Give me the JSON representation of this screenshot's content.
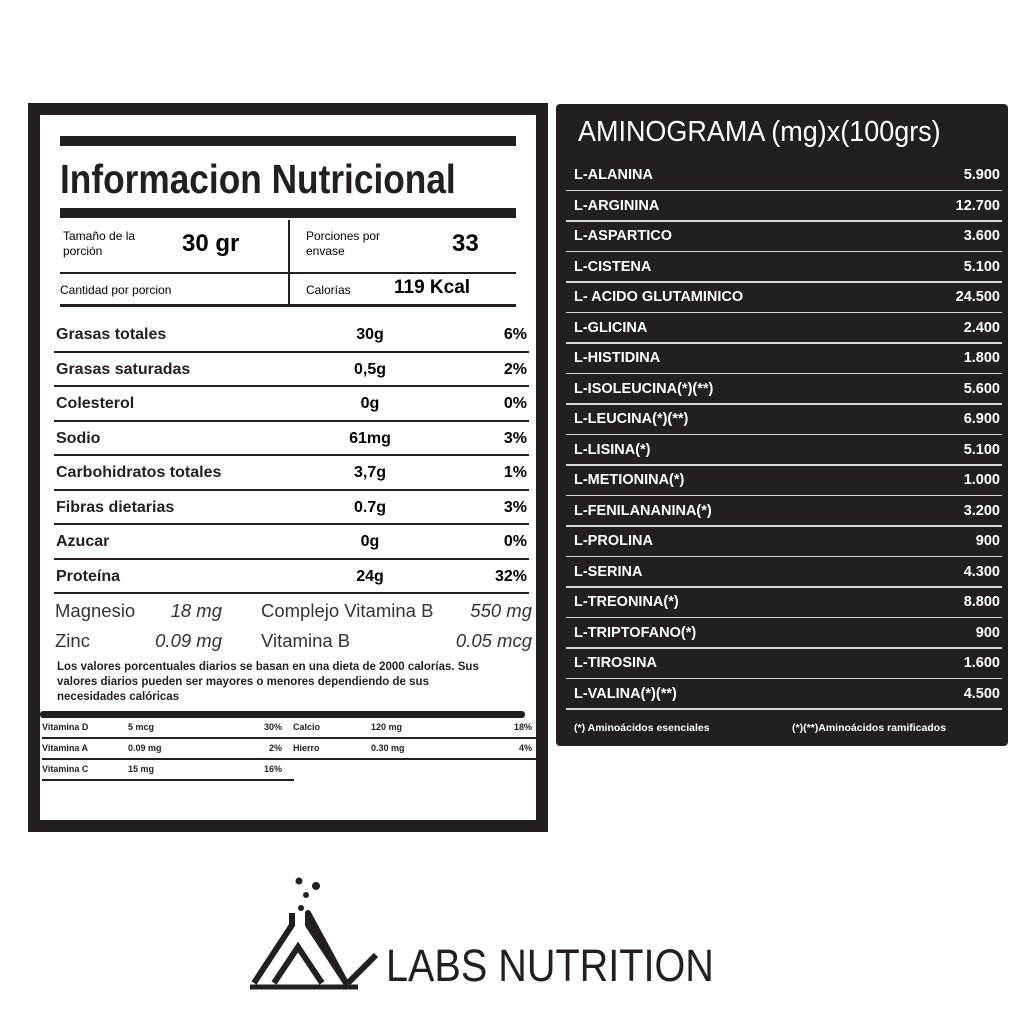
{
  "nutrition": {
    "title": "Informacion Nutricional",
    "serving_size": {
      "label": "Tamaño de la porción",
      "value": "30 gr"
    },
    "servings": {
      "label": "Porciones por envase",
      "value": "33"
    },
    "amount_label": "Cantidad por porcion",
    "calories": {
      "label": "Calorías",
      "value": "119 Kcal"
    },
    "rows": [
      [
        "Grasas totales",
        "30g",
        "6%"
      ],
      [
        "Grasas saturadas",
        "0,5g",
        "2%"
      ],
      [
        "Colesterol",
        "0g",
        "0%"
      ],
      [
        "Sodio",
        "61mg",
        "3%"
      ],
      [
        "Carbohidratos totales",
        "3,7g",
        "1%"
      ],
      [
        "Fibras dietarias",
        "0.7g",
        "3%"
      ],
      [
        "Azucar",
        "0g",
        "0%"
      ],
      [
        "Proteína",
        "24g",
        "32%"
      ]
    ],
    "minerals": [
      [
        "Magnesio",
        "18 mg",
        "Complejo Vitamina B",
        "550 mg"
      ],
      [
        "Zinc",
        "0.09 mg",
        "Vitamina B",
        "0.05 mcg"
      ]
    ],
    "footnote": "Los valores porcentuales diarios se basan en una dieta de 2000 calorías. Sus valores diarios pueden ser mayores o menores dependiendo de sus necesidades calóricas",
    "vitamins": [
      [
        "Vitamina D",
        "5 mcg",
        "30%",
        "Calcio",
        "120 mg",
        "18%"
      ],
      [
        "Vitamina A",
        "0.09 mg",
        "2%",
        "Hierro",
        "0.30 mg",
        "4%"
      ],
      [
        "Vitamina C",
        "15 mg",
        "16%"
      ]
    ]
  },
  "aminogram": {
    "title": "AMINOGRAMA (mg)x(100grs)",
    "rows": [
      [
        "L-ALANINA",
        "5.900"
      ],
      [
        "L-ARGININA",
        "12.700"
      ],
      [
        "L-ASPARTICO",
        "3.600"
      ],
      [
        "L-CISTENA",
        "5.100"
      ],
      [
        "L- ACIDO GLUTAMINICO",
        "24.500"
      ],
      [
        "L-GLICINA",
        "2.400"
      ],
      [
        "L-HISTIDINA",
        "1.800"
      ],
      [
        "L-ISOLEUCINA(*)(**)",
        "5.600"
      ],
      [
        "L-LEUCINA(*)(**)",
        "6.900"
      ],
      [
        "L-LISINA(*)",
        "5.100"
      ],
      [
        "L-METIONINA(*)",
        "1.000"
      ],
      [
        "L-FENILANANINA(*)",
        "3.200"
      ],
      [
        "L-PROLINA",
        "900"
      ],
      [
        "L-SERINA",
        "4.300"
      ],
      [
        "L-TREONINA(*)",
        "8.800"
      ],
      [
        "L-TRIPTOFANO(*)",
        "900"
      ],
      [
        "L-TIROSINA",
        "1.600"
      ],
      [
        "L-VALINA(*)(**)",
        "4.500"
      ]
    ],
    "notes": [
      "(*) Aminoácidos esenciales",
      "(*)(**)Aminoácidos ramificados"
    ]
  },
  "brand": "LABS NUTRITION"
}
